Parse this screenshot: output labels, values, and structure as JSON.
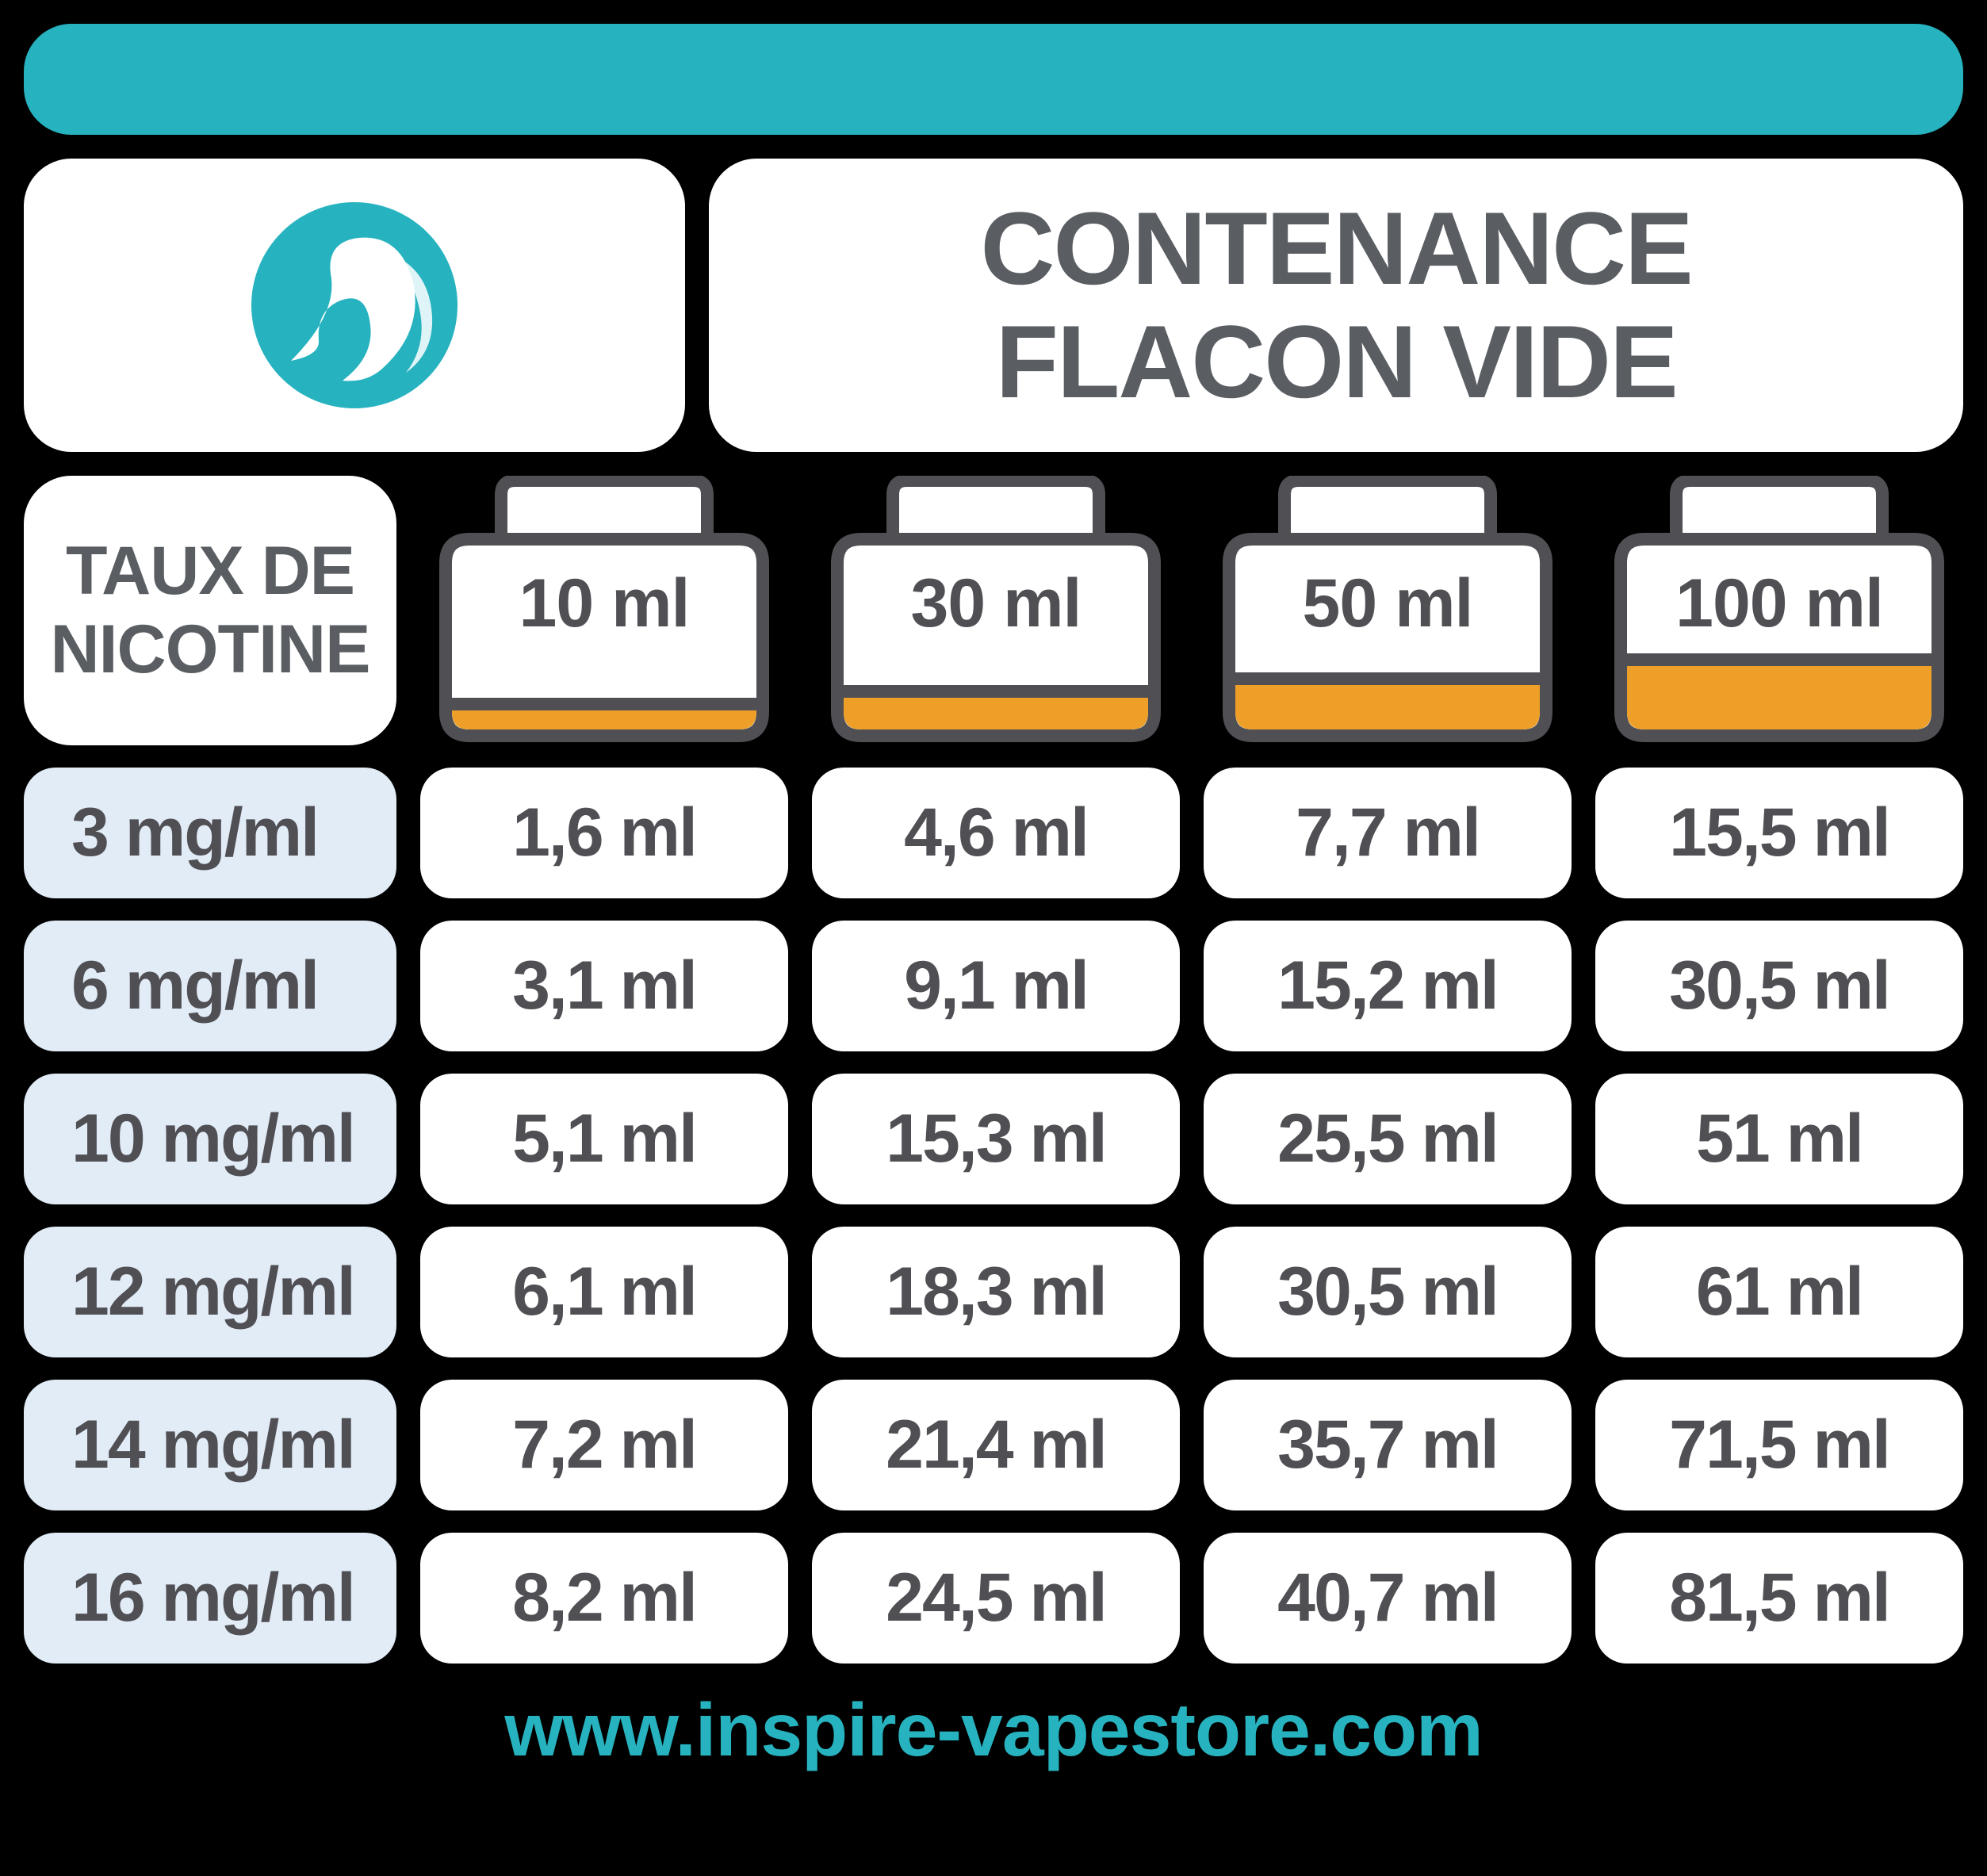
{
  "colors": {
    "background": "#000000",
    "teal": "#26b3bf",
    "white": "#ffffff",
    "light_blue": "#e2ecf7",
    "gray_text": "#5a5e63",
    "dark_gray": "#504f54",
    "liquid_orange": "#ee9f27",
    "bottle_outline": "#504f54"
  },
  "header": {
    "title_line1": "CONTENANCE",
    "title_line2": "FLACON VIDE"
  },
  "column_labels": {
    "taux_line1": "TAUX DE",
    "taux_line2": "NICOTINE",
    "bottles": [
      {
        "label": "10 ml",
        "fill_height": 40
      },
      {
        "label": "30 ml",
        "fill_height": 56
      },
      {
        "label": "50 ml",
        "fill_height": 72
      },
      {
        "label": "100 ml",
        "fill_height": 96
      }
    ]
  },
  "table": {
    "rows": [
      {
        "taux": "3 mg/ml",
        "values": [
          "1,6 ml",
          "4,6 ml",
          "7,7 ml",
          "15,5 ml"
        ]
      },
      {
        "taux": "6 mg/ml",
        "values": [
          "3,1 ml",
          "9,1 ml",
          "15,2 ml",
          "30,5 ml"
        ]
      },
      {
        "taux": "10 mg/ml",
        "values": [
          "5,1 ml",
          "15,3 ml",
          "25,5 ml",
          "51 ml"
        ]
      },
      {
        "taux": "12 mg/ml",
        "values": [
          "6,1 ml",
          "18,3 ml",
          "30,5 ml",
          "61 ml"
        ]
      },
      {
        "taux": "14 mg/ml",
        "values": [
          "7,2 ml",
          "21,4 ml",
          "35,7 ml",
          "71,5 ml"
        ]
      },
      {
        "taux": "16 mg/ml",
        "values": [
          "8,2 ml",
          "24,5 ml",
          "40,7 ml",
          "81,5 ml"
        ]
      }
    ]
  },
  "footer": {
    "url": "www.inspire-vapestore.com"
  },
  "styling": {
    "type": "table",
    "cell_border_radius": 40,
    "header_border_radius": 60,
    "row_gap": 28,
    "col_gap": 30,
    "cell_font_size": 86,
    "cell_font_weight": 900,
    "title_font_size": 130,
    "footer_font_size": 95,
    "taux_cell_width": 470,
    "data_cell_height": 165,
    "bottle_header_height": 340
  }
}
